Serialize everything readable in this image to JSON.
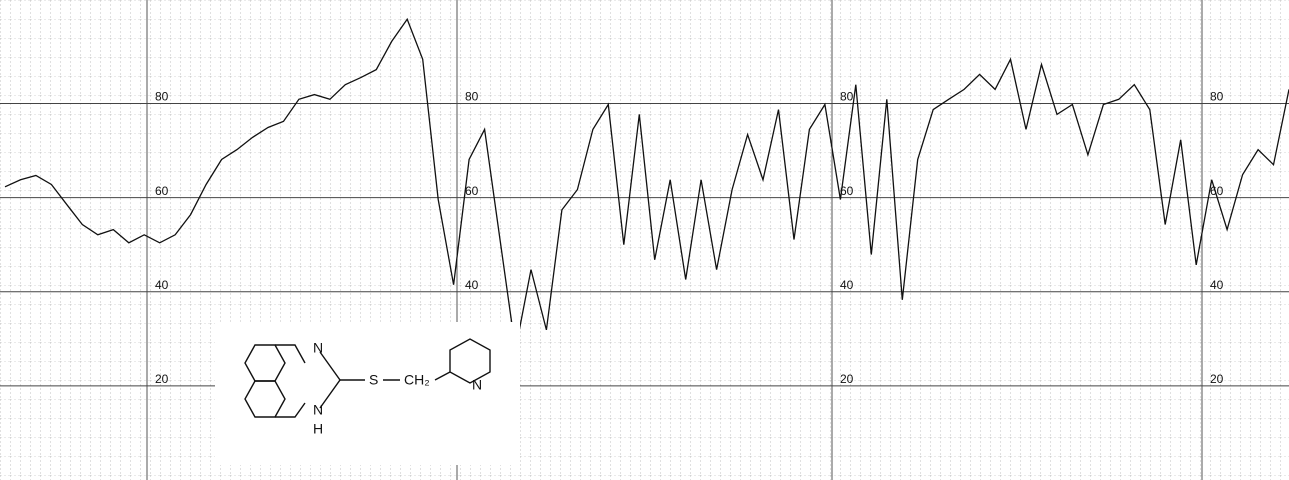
{
  "chart_data": {
    "type": "line",
    "categories": [
      null,
      null,
      null,
      null,
      null,
      null,
      null,
      null,
      null,
      null,
      null,
      null,
      null,
      null,
      null,
      null,
      null,
      null,
      null,
      null,
      null,
      null,
      null,
      null,
      null,
      null,
      null,
      null,
      null,
      null,
      null,
      null,
      null,
      null,
      null,
      null,
      null,
      null,
      null,
      null,
      null,
      null,
      null,
      null,
      null,
      null,
      null,
      null,
      null,
      null,
      null,
      null,
      null,
      null,
      null,
      null,
      null,
      null,
      null,
      null,
      null,
      null,
      null,
      null,
      null,
      null,
      null,
      null,
      null,
      null,
      null,
      null,
      null,
      null,
      null,
      null,
      null,
      null,
      null,
      null,
      null,
      null,
      null,
      null
    ],
    "values": [
      62.3,
      63.8,
      64.7,
      62.8,
      58.5,
      54.3,
      52.1,
      53.2,
      50.4,
      52.1,
      50.4,
      52.1,
      56.4,
      62.8,
      68.1,
      70.2,
      72.8,
      74.9,
      76.2,
      80.9,
      81.9,
      80.9,
      84.0,
      85.5,
      87.2,
      93.2,
      97.9,
      89.4,
      59.6,
      41.5,
      68.1,
      74.5,
      51.1,
      27.7,
      44.7,
      31.9,
      57.4,
      61.7,
      74.5,
      79.8,
      50.0,
      77.7,
      46.8,
      63.8,
      42.6,
      63.8,
      44.7,
      61.7,
      73.4,
      63.8,
      78.7,
      51.1,
      74.5,
      79.8,
      59.6,
      84.0,
      47.9,
      80.9,
      38.3,
      68.1,
      78.7,
      80.9,
      83.0,
      86.2,
      83.0,
      89.4,
      74.5,
      88.3,
      77.7,
      79.8,
      69.1,
      79.8,
      80.9,
      84.0,
      78.7,
      54.3,
      72.3,
      45.7,
      63.8,
      53.2,
      64.9,
      70.2,
      67.0,
      83.0
    ],
    "color": "#111111",
    "ylim": [
      0,
      102
    ],
    "yticks": [
      20,
      40,
      60,
      80
    ],
    "grid": true,
    "annotations": [
      "N",
      "N",
      "H",
      "S",
      "CH₂",
      "N"
    ]
  }
}
